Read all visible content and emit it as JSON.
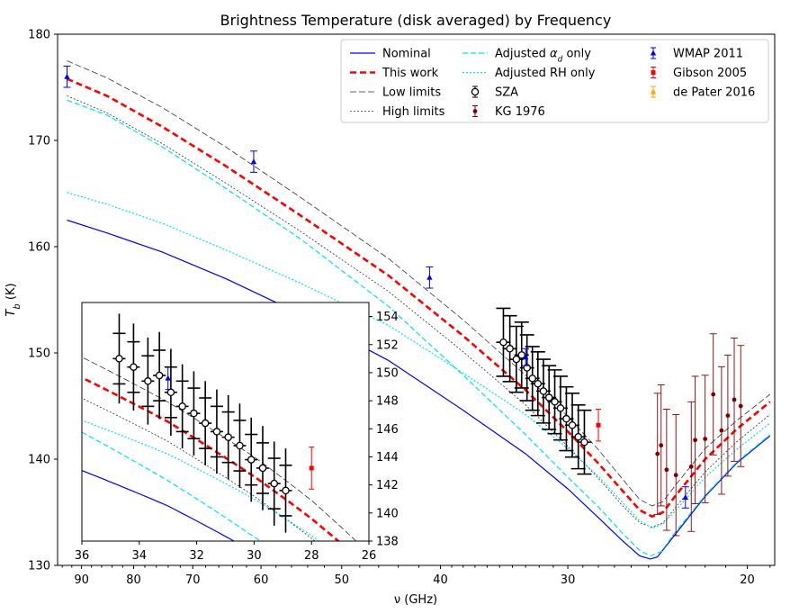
{
  "chart_data": {
    "type": "line",
    "title": "Brightness Temperature (disk averaged) by Frequency",
    "xlabel": "ν (GHz)",
    "ylabel": "T_b (K)",
    "xscale": "log (reversed)",
    "xlim": [
      95,
      18.8
    ],
    "ylim": [
      130,
      180
    ],
    "xticks": [
      90,
      80,
      70,
      60,
      50,
      40,
      30,
      20
    ],
    "yticks": [
      130,
      140,
      150,
      160,
      170,
      180
    ],
    "legend": {
      "placement": "top-right",
      "entries": [
        {
          "label": "Nominal",
          "color": "#0000ff",
          "style": "solid"
        },
        {
          "label": "This work",
          "color": "#ff0000",
          "style": "dashed-thick"
        },
        {
          "label": "Low limits",
          "color": "#333333",
          "style": "dashed-thin"
        },
        {
          "label": "High limits",
          "color": "#333333",
          "style": "dotted-thin"
        },
        {
          "label": "Adjusted α_d only",
          "color": "#00e5e5",
          "style": "dashed"
        },
        {
          "label": "Adjusted RH only",
          "color": "#00e5e5",
          "style": "dotted"
        },
        {
          "label": "SZA",
          "color": "#000000",
          "style": "open-circle-errorbar"
        },
        {
          "label": "KG 1976",
          "color": "#800000",
          "style": "dot-errorbar"
        },
        {
          "label": "WMAP 2011",
          "color": "#0000ff",
          "style": "triangle-errorbar"
        },
        {
          "label": "Gibson 2005",
          "color": "#ff0000",
          "style": "square-errorbar"
        },
        {
          "label": "de Pater 2016",
          "color": "#ffa500",
          "style": "triangle-errorbar"
        }
      ]
    },
    "series": [
      {
        "name": "Nominal",
        "color": "#0000ff",
        "dash": "",
        "width": 1.2,
        "points": [
          [
            93,
            162.5
          ],
          [
            85,
            161.3
          ],
          [
            75,
            159.5
          ],
          [
            65,
            157
          ],
          [
            55,
            153.7
          ],
          [
            45,
            149.3
          ],
          [
            38,
            144.6
          ],
          [
            33,
            140.5
          ],
          [
            30,
            137.2
          ],
          [
            28,
            134.5
          ],
          [
            26.5,
            132.3
          ],
          [
            25.5,
            130.9
          ],
          [
            24.9,
            130.6
          ],
          [
            24.5,
            130.8
          ],
          [
            23.5,
            133
          ],
          [
            22,
            136.5
          ],
          [
            20.5,
            139.6
          ],
          [
            19,
            142.2
          ]
        ]
      },
      {
        "name": "This work",
        "color": "#ff0000",
        "dash": "7,4",
        "width": 2.6,
        "points": [
          [
            93,
            175.8
          ],
          [
            85,
            174.2
          ],
          [
            75,
            171.3
          ],
          [
            65,
            167.6
          ],
          [
            55,
            163
          ],
          [
            45,
            157.3
          ],
          [
            38,
            151.6
          ],
          [
            33,
            146.5
          ],
          [
            30,
            142.6
          ],
          [
            28,
            139.6
          ],
          [
            26.5,
            137
          ],
          [
            25.5,
            135.2
          ],
          [
            24.8,
            134.6
          ],
          [
            24.2,
            135
          ],
          [
            23.5,
            136.6
          ],
          [
            22,
            140
          ],
          [
            20.5,
            142.8
          ],
          [
            19,
            145.4
          ]
        ]
      },
      {
        "name": "Low limits",
        "color": "#333333",
        "dash": "7,3",
        "width": 0.8,
        "points": [
          [
            93,
            177.5
          ],
          [
            85,
            175.9
          ],
          [
            75,
            173.1
          ],
          [
            65,
            169.4
          ],
          [
            55,
            164.7
          ],
          [
            45,
            158.9
          ],
          [
            38,
            153.1
          ],
          [
            33,
            147.9
          ],
          [
            30,
            144
          ],
          [
            28,
            140.9
          ],
          [
            26.5,
            138.1
          ],
          [
            25.5,
            136.2
          ],
          [
            24.8,
            135.6
          ],
          [
            24.2,
            136
          ],
          [
            23.5,
            137.6
          ],
          [
            22,
            141
          ],
          [
            20.5,
            143.6
          ],
          [
            19,
            146.1
          ]
        ]
      },
      {
        "name": "High limits",
        "color": "#333333",
        "dash": "2,2",
        "width": 0.8,
        "points": [
          [
            93,
            174.2
          ],
          [
            85,
            172.6
          ],
          [
            75,
            169.7
          ],
          [
            65,
            166
          ],
          [
            55,
            161.5
          ],
          [
            45,
            155.8
          ],
          [
            38,
            150.1
          ],
          [
            33,
            145.1
          ],
          [
            30,
            141.2
          ],
          [
            28,
            138.2
          ],
          [
            26.5,
            135.6
          ],
          [
            25.5,
            134
          ],
          [
            24.8,
            133.6
          ],
          [
            24.2,
            134
          ],
          [
            23.5,
            135.5
          ],
          [
            22,
            138.8
          ],
          [
            20.5,
            141.6
          ],
          [
            19,
            144.2
          ]
        ]
      },
      {
        "name": "Adjusted α_d only",
        "color": "#00e5e5",
        "dash": "6,3",
        "width": 1.2,
        "points": [
          [
            93,
            173.8
          ],
          [
            85,
            172.4
          ],
          [
            75,
            169.4
          ],
          [
            65,
            165.5
          ],
          [
            55,
            160.8
          ],
          [
            45,
            154.4
          ],
          [
            38,
            147.9
          ],
          [
            33,
            142.3
          ],
          [
            30,
            138.3
          ],
          [
            28,
            135.5
          ],
          [
            26.5,
            133
          ],
          [
            25.5,
            131.4
          ],
          [
            24.9,
            130.9
          ],
          [
            24.3,
            131.3
          ],
          [
            23.5,
            133.2
          ],
          [
            22,
            136.6
          ],
          [
            20.5,
            139.7
          ],
          [
            19,
            142.3
          ]
        ]
      },
      {
        "name": "Adjusted RH only",
        "color": "#00e5e5",
        "dash": "2,2",
        "width": 1.2,
        "points": [
          [
            93,
            165.1
          ],
          [
            85,
            164
          ],
          [
            75,
            162.2
          ],
          [
            65,
            159.7
          ],
          [
            55,
            156.6
          ],
          [
            45,
            152.6
          ],
          [
            38,
            148.1
          ],
          [
            33,
            144.2
          ],
          [
            30,
            141
          ],
          [
            28,
            138.4
          ],
          [
            26.5,
            135.9
          ],
          [
            25.5,
            134.2
          ],
          [
            24.8,
            133.5
          ],
          [
            24.2,
            133.9
          ],
          [
            23.5,
            135.2
          ],
          [
            22,
            138.3
          ],
          [
            20.5,
            140.9
          ],
          [
            19,
            143.4
          ]
        ]
      }
    ],
    "points": {
      "WMAP 2011": [
        {
          "x": 93,
          "y": 176,
          "err": 1
        },
        {
          "x": 61,
          "y": 168,
          "err": 1
        },
        {
          "x": 41,
          "y": 157.1,
          "err": 1
        },
        {
          "x": 33,
          "y": 149.6,
          "err": 0.8
        },
        {
          "x": 23,
          "y": 136.4,
          "err": 1
        }
      ],
      "SZA": [
        {
          "x": 34.7,
          "y": 151,
          "err": 3.2
        },
        {
          "x": 34.2,
          "y": 150.4,
          "err": 3.1
        },
        {
          "x": 33.7,
          "y": 149.4,
          "err": 3.1
        },
        {
          "x": 33.3,
          "y": 149.8,
          "err": 3.1
        },
        {
          "x": 32.9,
          "y": 148.6,
          "err": 3.1
        },
        {
          "x": 32.5,
          "y": 147.6,
          "err": 3
        },
        {
          "x": 32.1,
          "y": 147.1,
          "err": 3
        },
        {
          "x": 31.7,
          "y": 146.4,
          "err": 3
        },
        {
          "x": 31.3,
          "y": 145.8,
          "err": 3
        },
        {
          "x": 30.9,
          "y": 145.4,
          "err": 3
        },
        {
          "x": 30.5,
          "y": 144.8,
          "err": 3
        },
        {
          "x": 30.1,
          "y": 143.8,
          "err": 3
        },
        {
          "x": 29.7,
          "y": 143.2,
          "err": 3
        },
        {
          "x": 29.3,
          "y": 142.1,
          "err": 3
        },
        {
          "x": 28.9,
          "y": 141.6,
          "err": 3
        }
      ],
      "KG 1976": [
        {
          "x": 24.5,
          "y": 140.5,
          "err": 5.7
        },
        {
          "x": 24.3,
          "y": 141.3,
          "err": 5.7
        },
        {
          "x": 24,
          "y": 139,
          "err": 5.7
        },
        {
          "x": 23.5,
          "y": 138.5,
          "err": 5.7
        },
        {
          "x": 22.7,
          "y": 139.3,
          "err": 6.1
        },
        {
          "x": 22.5,
          "y": 141.8,
          "err": 6
        },
        {
          "x": 22,
          "y": 141.9,
          "err": 6
        },
        {
          "x": 21.6,
          "y": 146.1,
          "err": 5.7
        },
        {
          "x": 21.2,
          "y": 142.7,
          "err": 6
        },
        {
          "x": 20.9,
          "y": 144.1,
          "err": 5.7
        },
        {
          "x": 20.6,
          "y": 145.6,
          "err": 5.8
        },
        {
          "x": 20.3,
          "y": 145,
          "err": 5.7
        }
      ],
      "Gibson 2005": [
        {
          "x": 28,
          "y": 143.2,
          "err": 1.5
        }
      ],
      "de Pater 2016": []
    },
    "inset": {
      "xlim": [
        36,
        26
      ],
      "ylim": [
        138,
        155
      ],
      "xticks": [
        36,
        34,
        32,
        30,
        28,
        26
      ],
      "yticks": [
        138,
        140,
        142,
        144,
        146,
        148,
        150,
        152,
        154
      ]
    }
  },
  "colors": {
    "nominal": "#0000ff",
    "this_work": "#ff0000",
    "limits": "#333333",
    "adjusted": "#00e5e5",
    "sza": "#000000",
    "kg1976": "#800000",
    "wmap": "#0000ff",
    "gibson": "#ff0000",
    "depater": "#ffa500"
  }
}
